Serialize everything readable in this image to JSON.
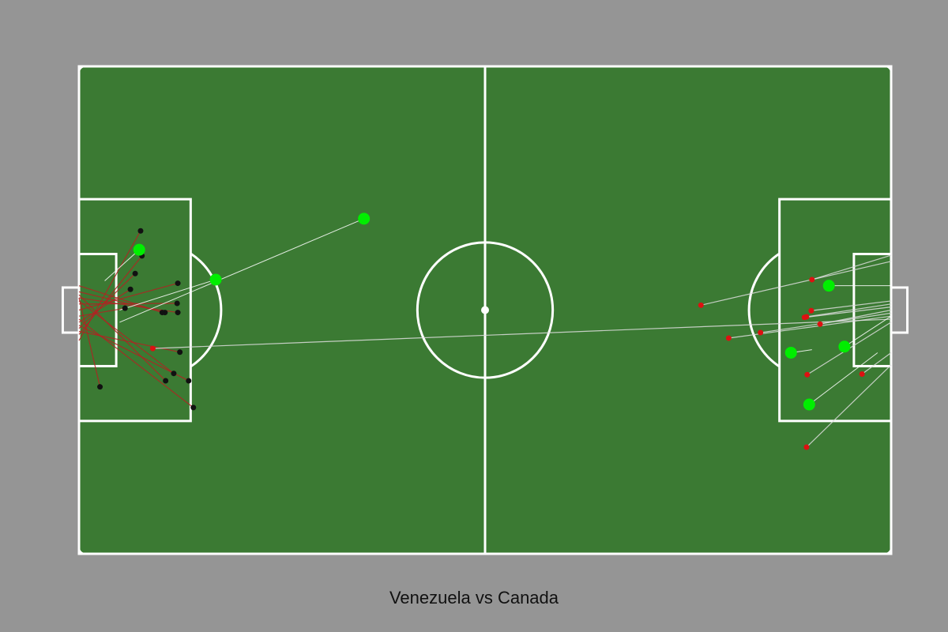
{
  "caption": "Venezuela vs Canada",
  "colors": {
    "background": "#959595",
    "pitch": "#3b7a33",
    "lines": "#ffffff",
    "goal_marker": "#00ee00",
    "left_team_shot": "#111111",
    "left_team_line": "#b22222",
    "right_team_shot": "#dd1111",
    "right_team_line": "#dddddd"
  },
  "chart_data": {
    "type": "scatter",
    "title": "Venezuela vs Canada",
    "xlim": [
      0,
      120
    ],
    "ylim": [
      0,
      80
    ],
    "grid": false,
    "series": [
      {
        "side": "left",
        "shots": [
          {
            "x": 9.1,
            "y": 53.0,
            "end_x": 0,
            "end_y": 35.0,
            "goal": false
          },
          {
            "x": 9.3,
            "y": 48.9,
            "end_x": 0,
            "end_y": 36.0,
            "goal": false
          },
          {
            "x": 8.3,
            "y": 46.0,
            "end_x": 0,
            "end_y": 37.0,
            "goal": false
          },
          {
            "x": 7.6,
            "y": 43.4,
            "end_x": 0,
            "end_y": 38.0,
            "goal": false
          },
          {
            "x": 6.8,
            "y": 40.3,
            "end_x": 0,
            "end_y": 39.0,
            "goal": false
          },
          {
            "x": 14.6,
            "y": 44.4,
            "end_x": 0,
            "end_y": 40.0,
            "goal": false
          },
          {
            "x": 14.5,
            "y": 41.1,
            "end_x": 0,
            "end_y": 41.0,
            "goal": false
          },
          {
            "x": 14.6,
            "y": 39.6,
            "end_x": 0,
            "end_y": 42.0,
            "goal": false
          },
          {
            "x": 12.7,
            "y": 39.6,
            "end_x": 0,
            "end_y": 43.0,
            "goal": false
          },
          {
            "x": 12.3,
            "y": 39.6,
            "end_x": 0,
            "end_y": 44.0,
            "goal": false
          },
          {
            "x": 14.9,
            "y": 33.1,
            "end_x": 0,
            "end_y": 36.5,
            "goal": false
          },
          {
            "x": 16.2,
            "y": 28.4,
            "end_x": 0,
            "end_y": 37.5,
            "goal": false
          },
          {
            "x": 16.9,
            "y": 24.0,
            "end_x": 0,
            "end_y": 38.5,
            "goal": false
          },
          {
            "x": 14.0,
            "y": 29.6,
            "end_x": 0,
            "end_y": 41.5,
            "goal": false
          },
          {
            "x": 12.8,
            "y": 28.4,
            "end_x": 0,
            "end_y": 42.5,
            "goal": false
          },
          {
            "x": 3.1,
            "y": 27.4,
            "end_x": 0,
            "end_y": 42.0,
            "goal": false
          },
          {
            "x": 8.9,
            "y": 49.9,
            "end_x": 3.8,
            "end_y": 44.8,
            "goal": true
          },
          {
            "x": 20.2,
            "y": 45.0,
            "end_x": 6.0,
            "end_y": 40.0,
            "goal": true
          },
          {
            "x": 42.1,
            "y": 55.0,
            "end_x": 6.0,
            "end_y": 38.0,
            "goal": true
          }
        ]
      },
      {
        "side": "right",
        "shots": [
          {
            "x": 108.3,
            "y": 45.0,
            "end_x": 120,
            "end_y": 49.0,
            "goal": false
          },
          {
            "x": 91.9,
            "y": 40.8,
            "end_x": 120,
            "end_y": 48.0,
            "goal": false
          },
          {
            "x": 108.2,
            "y": 39.9,
            "end_x": 120,
            "end_y": 41.5,
            "goal": false
          },
          {
            "x": 107.5,
            "y": 38.9,
            "end_x": 120,
            "end_y": 41.0,
            "goal": false
          },
          {
            "x": 107.2,
            "y": 38.8,
            "end_x": 120,
            "end_y": 40.5,
            "goal": false
          },
          {
            "x": 109.5,
            "y": 37.7,
            "end_x": 120,
            "end_y": 40.0,
            "goal": false
          },
          {
            "x": 100.7,
            "y": 36.3,
            "end_x": 120,
            "end_y": 39.5,
            "goal": false
          },
          {
            "x": 96.0,
            "y": 35.4,
            "end_x": 120,
            "end_y": 39.0,
            "goal": false
          },
          {
            "x": 10.9,
            "y": 33.7,
            "end_x": 120,
            "end_y": 38.5,
            "goal": false
          },
          {
            "x": 107.6,
            "y": 29.4,
            "end_x": 120,
            "end_y": 38.0,
            "goal": false
          },
          {
            "x": 115.7,
            "y": 29.5,
            "end_x": 120,
            "end_y": 33.0,
            "goal": false
          },
          {
            "x": 107.5,
            "y": 17.5,
            "end_x": 120,
            "end_y": 31.0,
            "goal": false
          },
          {
            "x": 110.8,
            "y": 44.0,
            "end_x": 120,
            "end_y": 44.0,
            "goal": true
          },
          {
            "x": 113.1,
            "y": 34.0,
            "end_x": 120,
            "end_y": 39.0,
            "goal": true
          },
          {
            "x": 107.9,
            "y": 24.5,
            "end_x": 118,
            "end_y": 33.0,
            "goal": true
          },
          {
            "x": 105.2,
            "y": 33.0,
            "end_x": 108.3,
            "end_y": 33.5,
            "goal": true
          }
        ]
      }
    ]
  }
}
